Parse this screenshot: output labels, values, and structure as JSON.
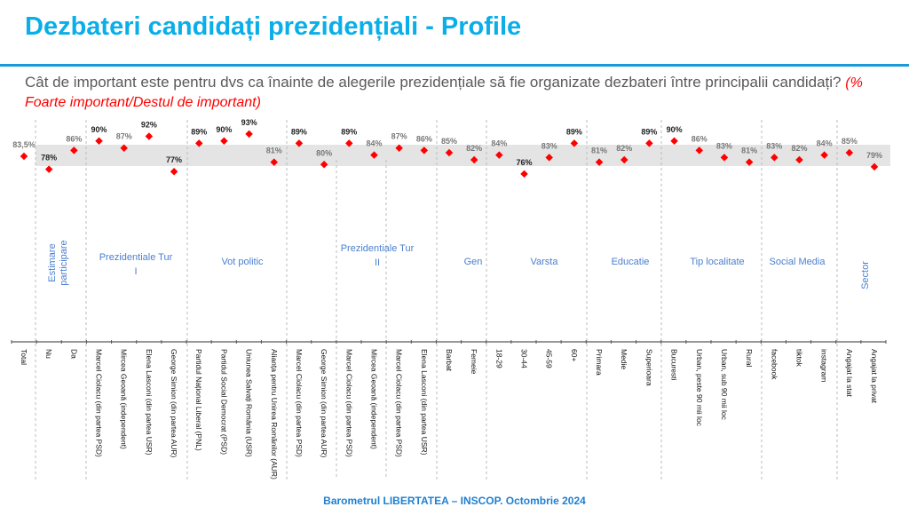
{
  "header": {
    "title": "Dezbateri candidați prezidențiali - Profile",
    "question": "Cât de important este pentru dvs ca înainte de alegerile prezidențiale să fie organizate dezbateri între principalii candidați?",
    "question_note": "(% Foarte important/Destul de important)"
  },
  "footer": "Barometrul LIBERTATEA – INSCOP. Octombrie 2024",
  "chart_data": {
    "type": "scatter",
    "title": "",
    "reference_band_around_total": true,
    "colors": {
      "point": "#ff0000",
      "band": "#e4e4e4",
      "label_outside_band": "#222222",
      "label_inside_band": "#777777",
      "group_label": "#4a7fd0"
    },
    "categories": [
      "Total",
      "Nu",
      "Da",
      "Marcel Ciolacu (din partea PSD)",
      "Mircea Geoană (independent)",
      "Elena Lasconi (din partea USR)",
      "George Simion (din partea AUR)",
      "Partidul Național Liberal (PNL)",
      "Partidul Social Democrat (PSD)",
      "Uniunea Salvați România (USR)",
      "Alianța pentru Unirea Românilor (AUR)",
      "Marcel Ciolacu (din partea PSD)",
      "George Simion (din partea AUR)",
      "Marcel Ciolacu (din partea PSD)",
      "Mircea Geoană (independent)",
      "Marcel Ciolacu (din partea PSD)",
      "Elena Lasconi (din partea USR)",
      "Barbat",
      "Femeie",
      "18-29",
      "30-44",
      "45-59",
      "60+",
      "Primara",
      "Medie",
      "Superioara",
      "Bucuresti",
      "Urban, peste 90 mii loc",
      "Urban, sub 90 mii loc",
      "Rural",
      "facebook",
      "tiktok",
      "instagram",
      "Angajat la stat",
      "Angajat la privat"
    ],
    "values": [
      83.5,
      78,
      86,
      90,
      87,
      92,
      77,
      89,
      90,
      93,
      81,
      89,
      80,
      89,
      84,
      87,
      86,
      85,
      82,
      84,
      76,
      83,
      89,
      81,
      82,
      89,
      90,
      86,
      83,
      81,
      83,
      82,
      84,
      85,
      79
    ],
    "value_labels": [
      "83,5%",
      "78%",
      "86%",
      "90%",
      "87%",
      "92%",
      "77%",
      "89%",
      "90%",
      "93%",
      "81%",
      "89%",
      "80%",
      "89%",
      "84%",
      "87%",
      "86%",
      "85%",
      "82%",
      "84%",
      "76%",
      "83%",
      "89%",
      "81%",
      "82%",
      "89%",
      "90%",
      "86%",
      "83%",
      "81%",
      "83%",
      "82%",
      "84%",
      "85%",
      "79%"
    ],
    "groups": [
      {
        "label": "Estimare participare",
        "members": [
          "Nu",
          "Da"
        ]
      },
      {
        "label": "Prezidentiale Tur I",
        "members": 4
      },
      {
        "label": "Vot politic",
        "members": 4
      },
      {
        "label": "Prezidentiale Tur II",
        "members": 6
      },
      {
        "label": "Gen",
        "members": 2
      },
      {
        "label": "Varsta",
        "members": 4
      },
      {
        "label": "Educatie",
        "members": 3
      },
      {
        "label": "Tip localitate",
        "members": 4
      },
      {
        "label": "Social Media",
        "members": 3
      },
      {
        "label": "Sector",
        "members": 2
      }
    ]
  }
}
